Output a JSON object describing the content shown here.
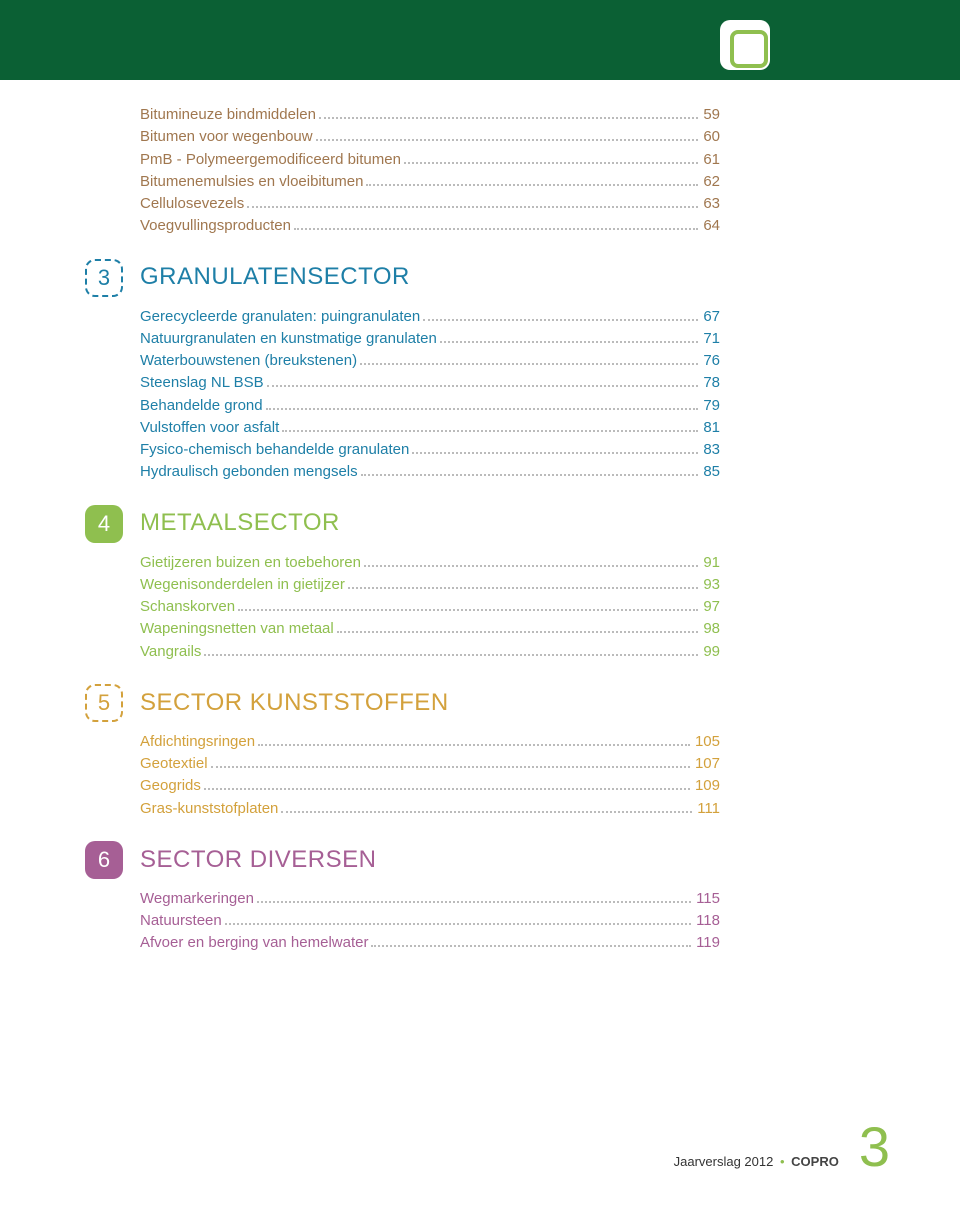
{
  "colors": {
    "header_bg": "#0b6034",
    "accent_green": "#8fbf4f",
    "blue": "#1e7fa7",
    "green": "#8fbf4f",
    "orange": "#d3a13c",
    "purple": "#a65f95",
    "brown": "#a0774f",
    "dots": "#bbbbbb",
    "text": "#333333"
  },
  "sections": [
    {
      "num": "",
      "title": "",
      "color_class": "",
      "items": [
        {
          "label": "Bitumineuze bindmiddelen",
          "page": "59"
        },
        {
          "label": "Bitumen voor wegenbouw",
          "page": "60"
        },
        {
          "label": "PmB - Polymeergemodificeerd bitumen",
          "page": "61"
        },
        {
          "label": "Bitumenemulsies en vloeibitumen",
          "page": "62"
        },
        {
          "label": "Cellulosevezels",
          "page": "63"
        },
        {
          "label": "Voegvullingsproducten",
          "page": "64"
        }
      ]
    },
    {
      "num": "3",
      "title": "GRANULATENSECTOR",
      "color_class": "blue",
      "box_class": "dashed-3",
      "items": [
        {
          "label": "Gerecycleerde granulaten: puingranulaten",
          "page": "67"
        },
        {
          "label": "Natuurgranulaten en kunstmatige granulaten",
          "page": "71"
        },
        {
          "label": "Waterbouwstenen (breukstenen)",
          "page": "76"
        },
        {
          "label": "Steenslag NL BSB",
          "page": "78"
        },
        {
          "label": "Behandelde grond",
          "page": "79"
        },
        {
          "label": "Vulstoffen voor asfalt",
          "page": "81"
        },
        {
          "label": "Fysico-chemisch behandelde granulaten",
          "page": "83"
        },
        {
          "label": "Hydraulisch gebonden mengsels",
          "page": "85"
        }
      ]
    },
    {
      "num": "4",
      "title": "METAALSECTOR",
      "color_class": "green",
      "box_class": "bg-green",
      "items": [
        {
          "label": "Gietijzeren buizen en toebehoren",
          "page": "91"
        },
        {
          "label": "Wegenisonderdelen in gietijzer",
          "page": "93"
        },
        {
          "label": "Schanskorven",
          "page": "97"
        },
        {
          "label": "Wapeningsnetten van metaal",
          "page": "98"
        },
        {
          "label": "Vangrails",
          "page": "99"
        }
      ]
    },
    {
      "num": "5",
      "title": "SECTOR KUNSTSTOFFEN",
      "color_class": "orange",
      "box_class": "dashed-5",
      "items": [
        {
          "label": "Afdichtingsringen",
          "page": "105"
        },
        {
          "label": "Geotextiel",
          "page": "107"
        },
        {
          "label": "Geogrids",
          "page": "109"
        },
        {
          "label": "Gras-kunststofplaten",
          "page": "111"
        }
      ]
    },
    {
      "num": "6",
      "title": "SECTOR DIVERSEN",
      "color_class": "purple",
      "box_class": "bg-purple",
      "items": [
        {
          "label": "Wegmarkeringen",
          "page": "115"
        },
        {
          "label": "Natuursteen",
          "page": "118"
        },
        {
          "label": "Afvoer en berging van hemelwater",
          "page": "119"
        }
      ]
    }
  ],
  "first_section_color_class": "brown",
  "footer": {
    "report": "Jaarverslag 2012",
    "brand": "COPRO",
    "page_number": "3"
  }
}
